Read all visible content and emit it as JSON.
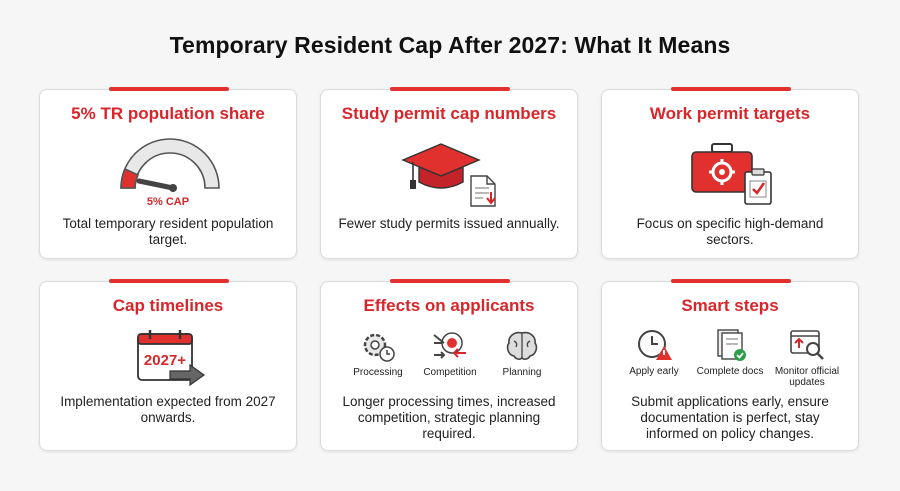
{
  "title": "Temporary Resident Cap After 2027: What It Means",
  "cards": [
    {
      "heading": "5% TR population share",
      "gauge_label": "5% CAP",
      "gauge_level_percent": 5,
      "description": "Total temporary resident population target."
    },
    {
      "heading": "Study permit cap numbers",
      "description": "Fewer study permits issued annually."
    },
    {
      "heading": "Work permit targets",
      "description": "Focus on specific high-demand sectors."
    },
    {
      "heading": "Cap timelines",
      "calendar_label": "2027+",
      "description": "Implementation expected from 2027 onwards."
    },
    {
      "heading": "Effects on applicants",
      "items": [
        "Processing",
        "Competition",
        "Planning"
      ],
      "description": "Longer processing times, increased competition, strategic planning required."
    },
    {
      "heading": "Smart steps",
      "items": [
        "Apply early",
        "Complete docs",
        "Monitor official",
        "updates"
      ],
      "description": "Submit applications early, ensure documentation is perfect, stay informed on policy changes."
    }
  ],
  "colors": {
    "accent": "#d8262b",
    "bar": "#e0312f",
    "background": "#f6f6f6",
    "card": "#ffffff"
  },
  "icons": [
    "gauge-icon",
    "graduation-cap-icon",
    "document-icon",
    "toolbox-icon",
    "clipboard-check-icon",
    "calendar-icon",
    "arrow-right-icon",
    "gears-clock-icon",
    "target-arrows-icon",
    "brain-icon",
    "clock-alert-icon",
    "documents-check-icon",
    "monitor-search-icon"
  ]
}
